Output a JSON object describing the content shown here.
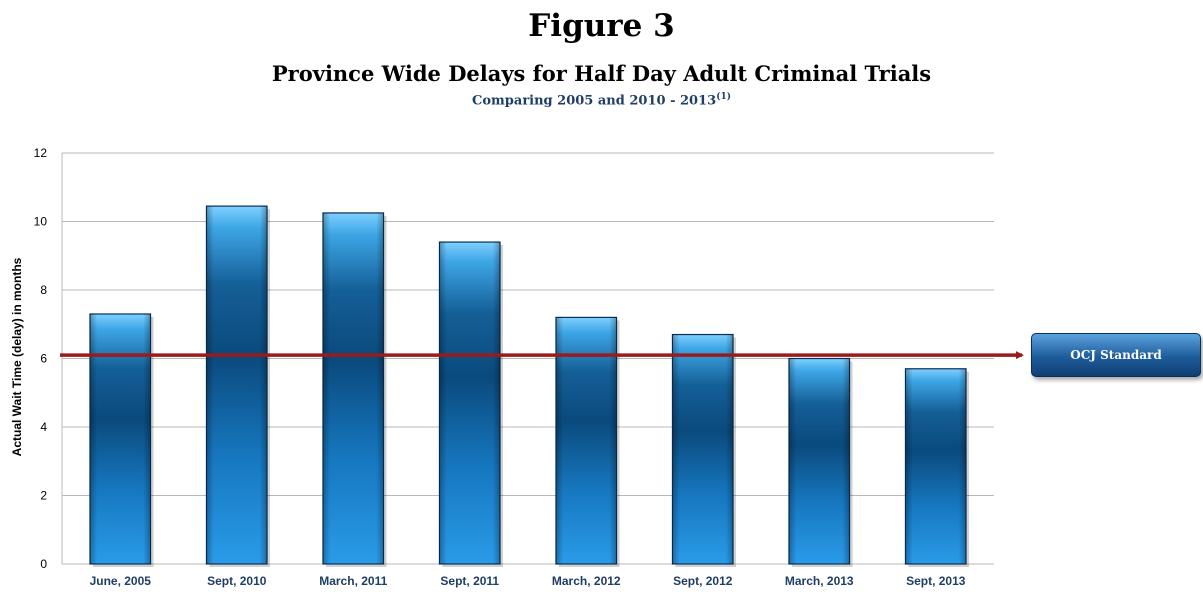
{
  "figure_label": "Figure 3",
  "chart_data": {
    "type": "bar",
    "title": "Province Wide Delays for Half Day Adult Criminal Trials",
    "subtitle": "Comparing 2005 and 2010 - 2013",
    "subtitle_note": "(1)",
    "xlabel": "",
    "ylabel": "Actual Wait Time (delay) in months",
    "categories": [
      "June, 2005",
      "Sept, 2010",
      "March, 2011",
      "Sept, 2011",
      "March, 2012",
      "Sept, 2012",
      "March, 2013",
      "Sept, 2013"
    ],
    "values": [
      7.3,
      10.45,
      10.25,
      9.4,
      7.2,
      6.7,
      6.0,
      5.7
    ],
    "ylim": [
      0,
      12
    ],
    "yticks": [
      0,
      2,
      4,
      6,
      8,
      10,
      12
    ],
    "grid": true,
    "reference_line": {
      "value": 6.1,
      "label": "OCJ Standard",
      "color": "#9b1b1b"
    },
    "colors": {
      "bar_light": "#3fa9e8",
      "bar_dark": "#0a4f86",
      "grid": "#b8b8b8"
    }
  }
}
